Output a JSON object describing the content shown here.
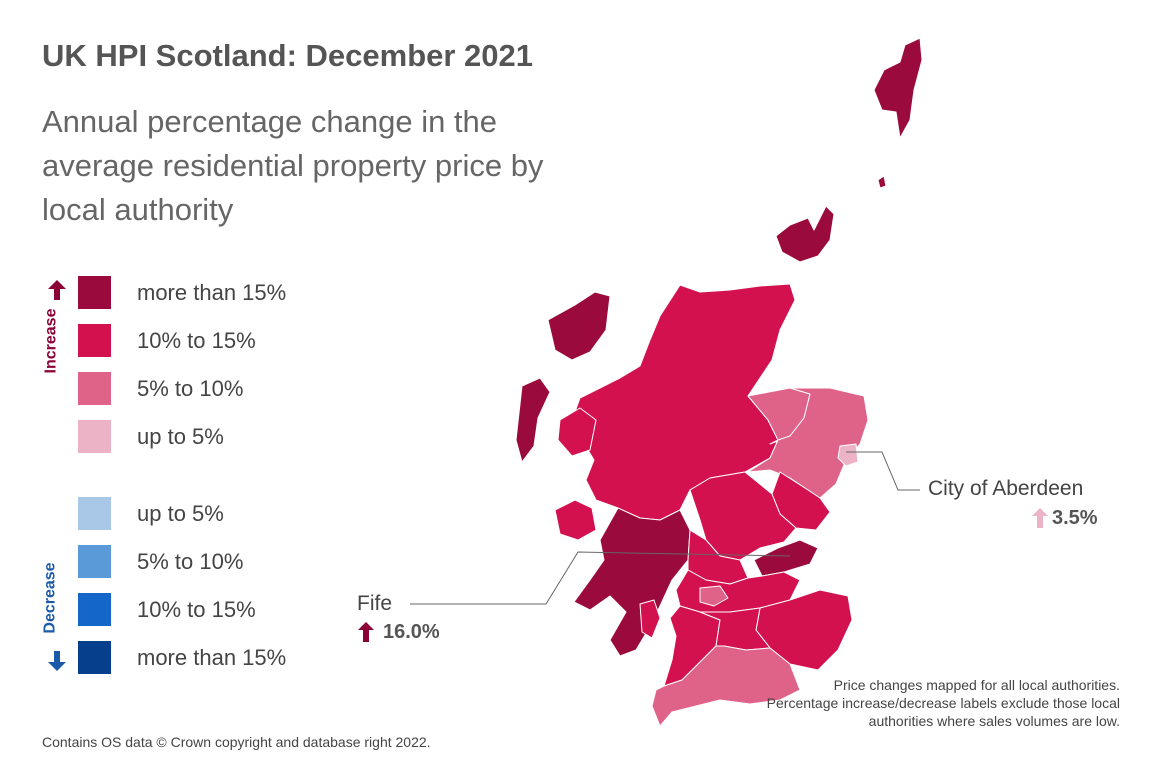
{
  "title": "UK HPI Scotland: December 2021",
  "subtitle": "Annual percentage change in the average residential property price by local authority",
  "legend": {
    "increase_label": "Increase",
    "decrease_label": "Decrease",
    "increase": [
      {
        "label": "more than 15%",
        "color": "#9a0a3c"
      },
      {
        "label": "10% to 15%",
        "color": "#d4114f"
      },
      {
        "label": "5% to 10%",
        "color": "#df6289"
      },
      {
        "label": "up to 5%",
        "color": "#ecb3c6"
      }
    ],
    "decrease": [
      {
        "label": "up to 5%",
        "color": "#a9c8e8"
      },
      {
        "label": "5% to 10%",
        "color": "#5a9ad8"
      },
      {
        "label": "10% to 15%",
        "color": "#1466c8"
      },
      {
        "label": "more than 15%",
        "color": "#063f8c"
      }
    ]
  },
  "callouts": {
    "aberdeen": {
      "name": "City of Aberdeen",
      "value": "3.5%",
      "direction": "up",
      "arrow_color": "#ecb3c6"
    },
    "fife": {
      "name": "Fife",
      "value": "16.0%",
      "direction": "up",
      "arrow_color": "#8b0037"
    }
  },
  "note": "Price changes mapped for all local authorities. Percentage increase/decrease labels exclude those local authorities where sales volumes are low.",
  "source": "Contains OS data © Crown copyright and database right 2022.",
  "colors": {
    "more_than_15": "#9a0a3c",
    "ten_to_15": "#d4114f",
    "five_to_10": "#df6289",
    "up_to_5": "#ecb3c6"
  }
}
